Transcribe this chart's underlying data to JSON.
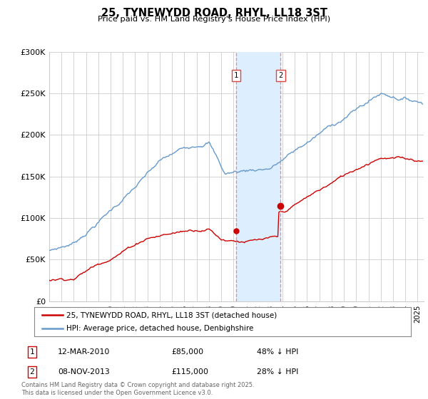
{
  "title": "25, TYNEWYDD ROAD, RHYL, LL18 3ST",
  "subtitle": "Price paid vs. HM Land Registry's House Price Index (HPI)",
  "ylim": [
    0,
    300000
  ],
  "xlim_start": 1995.0,
  "xlim_end": 2025.5,
  "yticks": [
    0,
    50000,
    100000,
    150000,
    200000,
    250000,
    300000
  ],
  "ytick_labels": [
    "£0",
    "£50K",
    "£100K",
    "£150K",
    "£200K",
    "£250K",
    "£300K"
  ],
  "sale1_x": 2010.2,
  "sale1_y": 85000,
  "sale1_label": "1",
  "sale1_date": "12-MAR-2010",
  "sale1_price": "£85,000",
  "sale1_hpi": "48% ↓ HPI",
  "sale2_x": 2013.85,
  "sale2_y": 115000,
  "sale2_label": "2",
  "sale2_date": "08-NOV-2013",
  "sale2_price": "£115,000",
  "sale2_hpi": "28% ↓ HPI",
  "line_red_color": "#cc0000",
  "line_blue_color": "#6699cc",
  "shade_color": "#ddeeff",
  "vline_color": "#ee8888",
  "grid_color": "#cccccc",
  "background_color": "#ffffff",
  "legend_line1": "25, TYNEWYDD ROAD, RHYL, LL18 3ST (detached house)",
  "legend_line2": "HPI: Average price, detached house, Denbighshire",
  "footer": "Contains HM Land Registry data © Crown copyright and database right 2025.\nThis data is licensed under the Open Government Licence v3.0.",
  "xticks": [
    1995,
    1996,
    1997,
    1998,
    1999,
    2000,
    2001,
    2002,
    2003,
    2004,
    2005,
    2006,
    2007,
    2008,
    2009,
    2010,
    2011,
    2012,
    2013,
    2014,
    2015,
    2016,
    2017,
    2018,
    2019,
    2020,
    2021,
    2022,
    2023,
    2024,
    2025
  ]
}
